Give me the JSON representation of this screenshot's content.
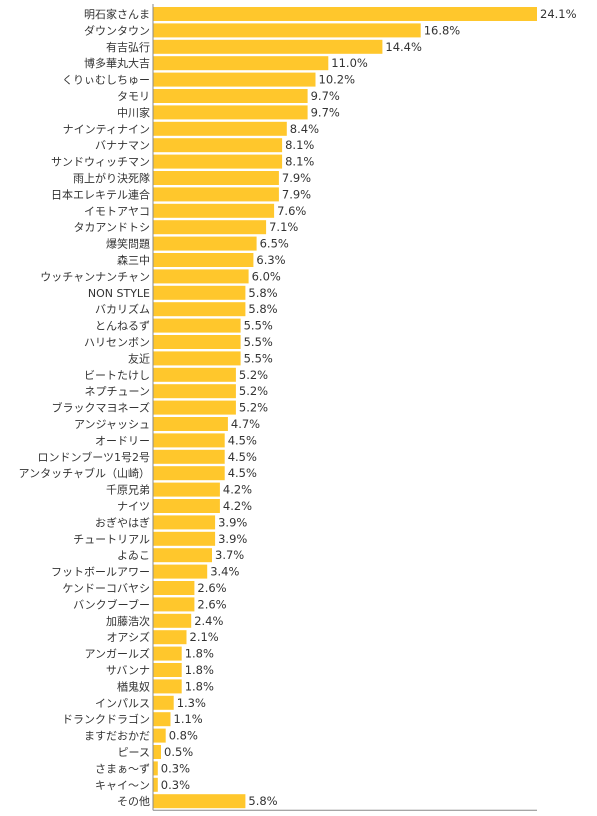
{
  "chart_data": {
    "type": "bar",
    "orientation": "horizontal",
    "title": "",
    "xlabel": "",
    "ylabel": "",
    "xlim": [
      0,
      24.1
    ],
    "grid": false,
    "legend": "none",
    "bar_color": "#FFC72C",
    "axis_color": "#888888",
    "categories": [
      "明石家さんま",
      "ダウンタウン",
      "有吉弘行",
      "博多華丸大吉",
      "くりぃむしちゅー",
      "タモリ",
      "中川家",
      "ナインティナイン",
      "バナナマン",
      "サンドウィッチマン",
      "雨上がり決死隊",
      "日本エレキテル連合",
      "イモトアヤコ",
      "タカアンドトシ",
      "爆笑問題",
      "森三中",
      "ウッチャンナンチャン",
      "NON STYLE",
      "バカリズム",
      "とんねるず",
      "ハリセンボン",
      "友近",
      "ビートたけし",
      "ネプチューン",
      "ブラックマヨネーズ",
      "アンジャッシュ",
      "オードリー",
      "ロンドンブーツ1号2号",
      "アンタッチャブル（山崎）",
      "千原兄弟",
      "ナイツ",
      "おぎやはぎ",
      "チュートリアル",
      "よゐこ",
      "フットボールアワー",
      "ケンドーコバヤシ",
      "バンクブーブー",
      "加藤浩次",
      "オアシズ",
      "アンガールズ",
      "サバンナ",
      "楢鬼奴",
      "インパルス",
      "ドランクドラゴン",
      "ますだおかだ",
      "ピース",
      "さまぁ〜ず",
      "キャイ〜ン",
      "その他"
    ],
    "values": [
      24.1,
      16.8,
      14.4,
      11.0,
      10.2,
      9.7,
      9.7,
      8.4,
      8.1,
      8.1,
      7.9,
      7.9,
      7.6,
      7.1,
      6.5,
      6.3,
      6.0,
      5.8,
      5.8,
      5.5,
      5.5,
      5.5,
      5.2,
      5.2,
      5.2,
      4.7,
      4.5,
      4.5,
      4.5,
      4.2,
      4.2,
      3.9,
      3.9,
      3.7,
      3.4,
      2.6,
      2.6,
      2.4,
      2.1,
      1.8,
      1.8,
      1.8,
      1.3,
      1.1,
      0.8,
      0.5,
      0.3,
      0.3,
      5.8
    ],
    "value_labels": [
      "24.1%",
      "16.8%",
      "14.4%",
      "11.0%",
      "10.2%",
      "9.7%",
      "9.7%",
      "8.4%",
      "8.1%",
      "8.1%",
      "7.9%",
      "7.9%",
      "7.6%",
      "7.1%",
      "6.5%",
      "6.3%",
      "6.0%",
      "5.8%",
      "5.8%",
      "5.5%",
      "5.5%",
      "5.5%",
      "5.2%",
      "5.2%",
      "5.2%",
      "4.7%",
      "4.5%",
      "4.5%",
      "4.5%",
      "4.2%",
      "4.2%",
      "3.9%",
      "3.9%",
      "3.7%",
      "3.4%",
      "2.6%",
      "2.6%",
      "2.4%",
      "2.1%",
      "1.8%",
      "1.8%",
      "1.8%",
      "1.3%",
      "1.1%",
      "0.8%",
      "0.5%",
      "0.3%",
      "0.3%",
      "5.8%"
    ]
  }
}
